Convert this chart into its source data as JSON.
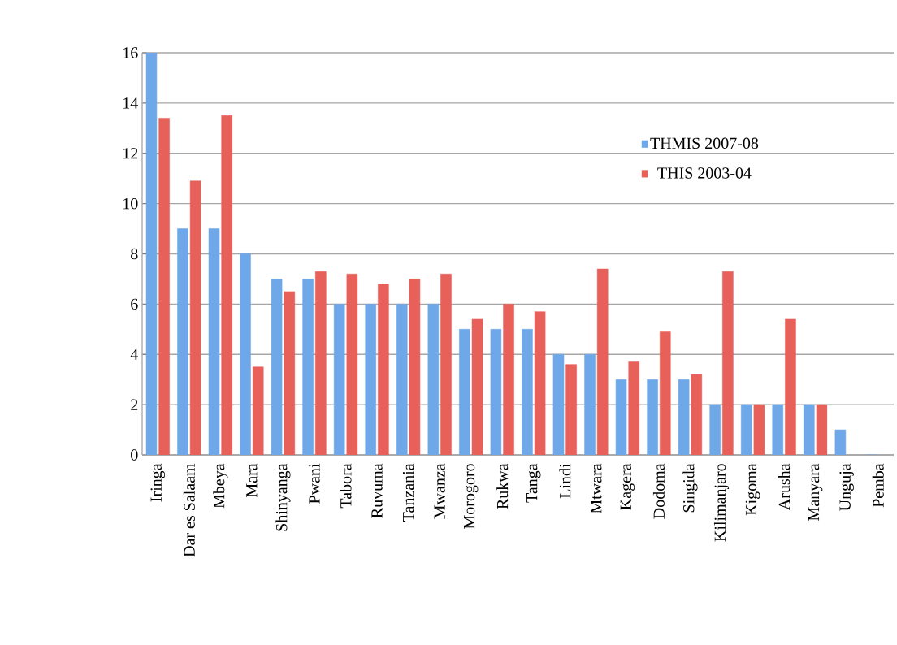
{
  "chart_data": {
    "type": "bar",
    "categories": [
      "Iringa",
      "Dar es Salaam",
      "Mbeya",
      "Mara",
      "Shinyanga",
      "Pwani",
      "Tabora",
      "Ruvuma",
      "Tanzania",
      "Mwanza",
      "Morogoro",
      "Rukwa",
      "Tanga",
      "Lindi",
      "Mtwara",
      "Kagera",
      "Dodoma",
      "Singida",
      "Kilimanjaro",
      "Kigoma",
      "Arusha",
      "Manyara",
      "Unguja",
      "Pemba"
    ],
    "series": [
      {
        "name": "THMIS 2007-08",
        "color": "#6fa8e8",
        "values": [
          16,
          9,
          9,
          8,
          7,
          7,
          6,
          6,
          6,
          6,
          5,
          5,
          5,
          4,
          4,
          3,
          3,
          3,
          2,
          2,
          2,
          2,
          1,
          0
        ]
      },
      {
        "name": "THIS 2003-04",
        "color": "#e8605a",
        "values": [
          13.4,
          10.9,
          13.5,
          3.5,
          6.5,
          7.3,
          7.2,
          6.8,
          7.0,
          7.2,
          5.4,
          6.0,
          5.7,
          3.6,
          7.4,
          3.7,
          4.9,
          3.2,
          7.3,
          2.0,
          5.4,
          2.0,
          null,
          null
        ]
      }
    ],
    "ylim": [
      0,
      16
    ],
    "yticks": [
      0,
      2,
      4,
      6,
      8,
      10,
      12,
      14,
      16
    ],
    "grid": "y",
    "legend": "right"
  }
}
